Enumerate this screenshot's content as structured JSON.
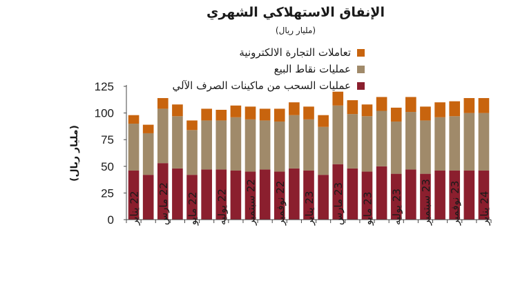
{
  "chart_data": {
    "type": "bar",
    "stacked": true,
    "title": "الإنفاق الاستهلاكي الشهري",
    "subtitle": "(مليار ريال)",
    "xlabel": "",
    "ylabel": "(مليار ريال)",
    "ylim": [
      0,
      125
    ],
    "yticks": [
      0,
      25,
      50,
      75,
      100,
      125
    ],
    "grid": false,
    "legend_position": "top",
    "x": [
      "2022-01",
      "2022-02",
      "2022-03",
      "2022-04",
      "2022-05",
      "2022-06",
      "2022-07",
      "2022-08",
      "2022-09",
      "2022-10",
      "2022-11",
      "2022-12",
      "2023-01",
      "2023-02",
      "2023-03",
      "2023-04",
      "2023-05",
      "2023-06",
      "2023-07",
      "2023-08",
      "2023-09",
      "2023-10",
      "2023-11",
      "2023-12",
      "2024-01"
    ],
    "tick_labels": [
      {
        "month": "يناير",
        "year": "22"
      },
      {
        "month": "مارس",
        "year": "22"
      },
      {
        "month": "مايو",
        "year": "22"
      },
      {
        "month": "يوليه",
        "year": "22"
      },
      {
        "month": "سبتمبر",
        "year": "22"
      },
      {
        "month": "نوفمبر",
        "year": "22"
      },
      {
        "month": "يناير",
        "year": "23"
      },
      {
        "month": "مارس",
        "year": "23"
      },
      {
        "month": "مايو",
        "year": "23"
      },
      {
        "month": "يوليه",
        "year": "23"
      },
      {
        "month": "سبتمبر",
        "year": "23"
      },
      {
        "month": "نوفمبر",
        "year": "23"
      },
      {
        "month": "يناير",
        "year": "24"
      }
    ],
    "series": [
      {
        "name": "عمليات السحب من ماكينات الصرف الآلي",
        "color": "#8B1F2E",
        "values": [
          46,
          42,
          53,
          48,
          42,
          47,
          47,
          46,
          45,
          47,
          45,
          48,
          46,
          42,
          52,
          48,
          45,
          50,
          43,
          47,
          43,
          46,
          46,
          46,
          46
        ]
      },
      {
        "name": "عمليات نقاط البيع",
        "color": "#A08A6A",
        "values": [
          44,
          39,
          51,
          49,
          42,
          46,
          46,
          50,
          49,
          46,
          47,
          50,
          48,
          45,
          55,
          51,
          52,
          52,
          49,
          54,
          50,
          50,
          51,
          54,
          54
        ]
      },
      {
        "name": "تعاملات التجارة الالكترونية",
        "color": "#C8640E",
        "values": [
          8,
          8,
          10,
          11,
          9,
          11,
          10,
          11,
          12,
          11,
          12,
          12,
          12,
          11,
          13,
          13,
          11,
          13,
          13,
          14,
          13,
          14,
          14,
          14,
          14
        ]
      }
    ]
  }
}
